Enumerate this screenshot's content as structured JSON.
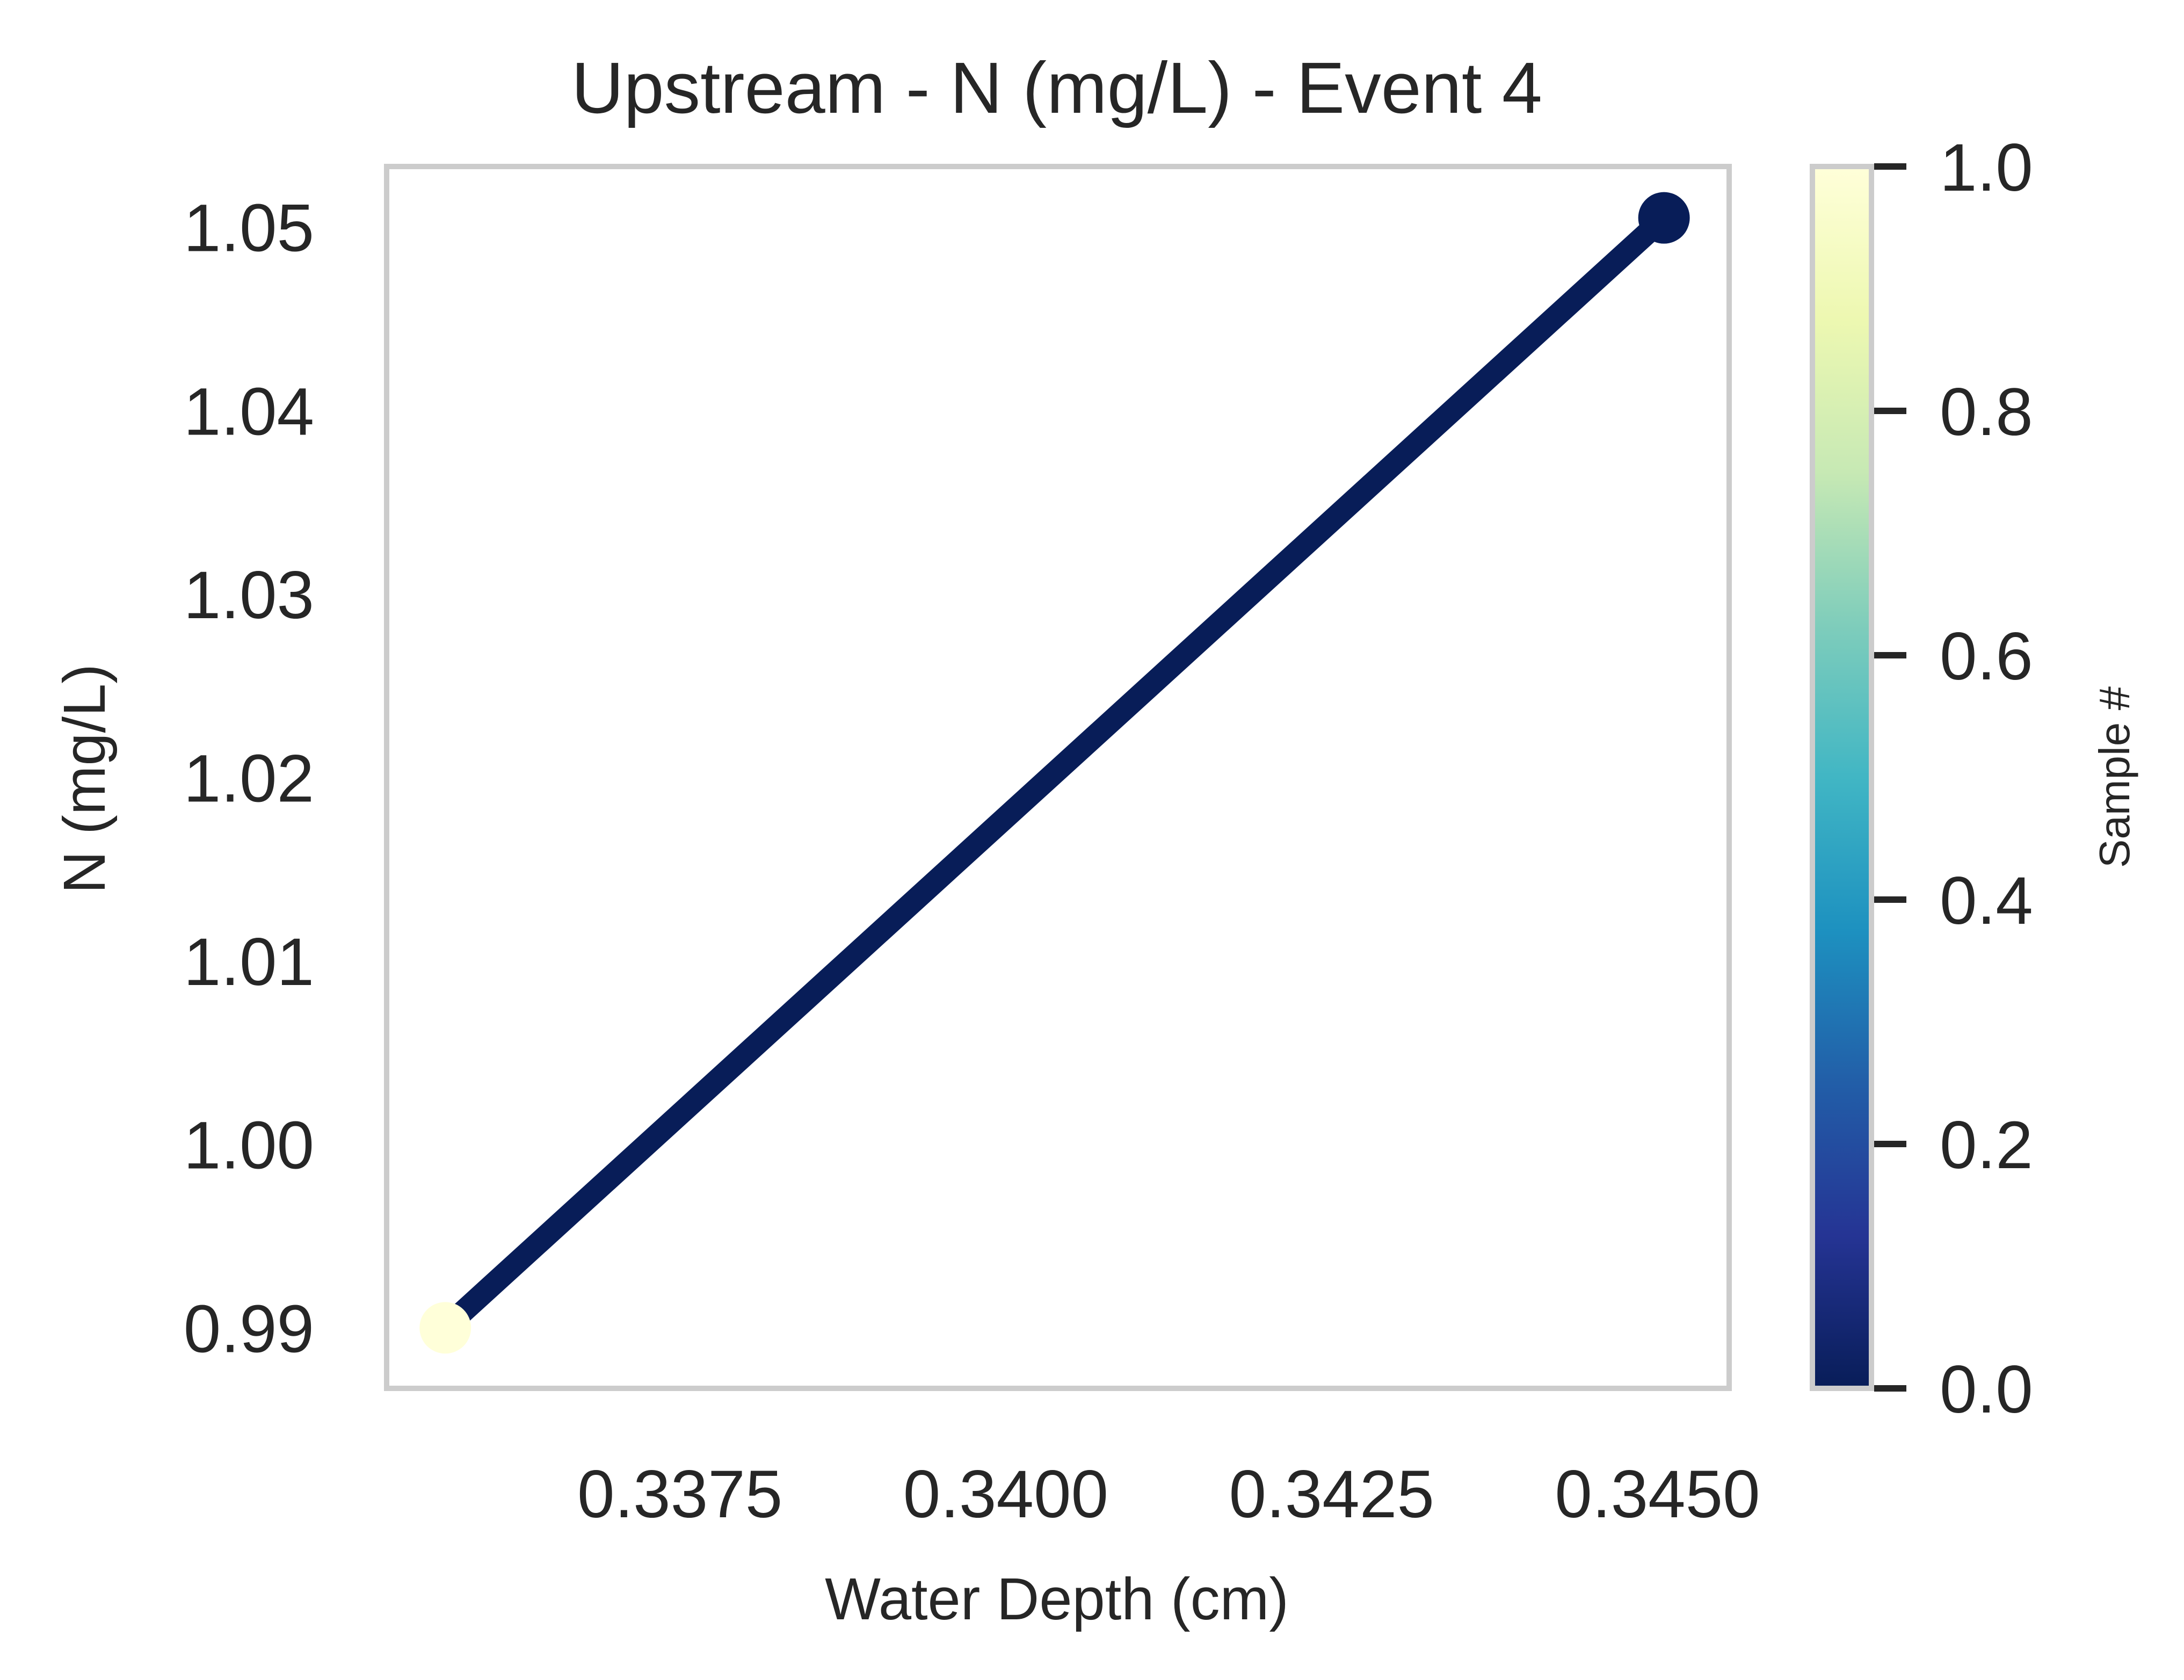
{
  "chart_data": {
    "type": "line",
    "title": "Upstream - N (mg/L) - Event 4",
    "xlabel": "Water Depth (cm)",
    "ylabel": "N (mg/L)",
    "xlim": [
      0.33525,
      0.34555
    ],
    "ylim": [
      0.9867,
      1.0533
    ],
    "xticks": [
      0.3375,
      0.34,
      0.3425,
      0.345
    ],
    "xtick_labels": [
      "0.3375",
      "0.3400",
      "0.3425",
      "0.3450"
    ],
    "yticks": [
      0.99,
      1.0,
      1.01,
      1.02,
      1.03,
      1.04,
      1.05
    ],
    "ytick_labels": [
      "0.99",
      "1.00",
      "1.01",
      "1.02",
      "1.03",
      "1.04",
      "1.05"
    ],
    "grid": false,
    "points": [
      {
        "x": 0.3357,
        "y": 0.99,
        "sample": 1.0
      },
      {
        "x": 0.34505,
        "y": 1.0505,
        "sample": 0.0
      }
    ],
    "line_color": "#081d58",
    "colorbar": {
      "label": "Sample #",
      "colormap": "YlGnBu_r",
      "range": [
        0.0,
        1.0
      ],
      "ticks": [
        0.0,
        0.2,
        0.4,
        0.6,
        0.8,
        1.0
      ],
      "tick_labels": [
        "0.0",
        "0.2",
        "0.4",
        "0.6",
        "0.8",
        "1.0"
      ],
      "colors": [
        "#081d58",
        "#253494",
        "#225ea8",
        "#1d91c0",
        "#41b6c4",
        "#7fcdbb",
        "#c7e9b4",
        "#edf8b1",
        "#ffffd9"
      ]
    }
  }
}
